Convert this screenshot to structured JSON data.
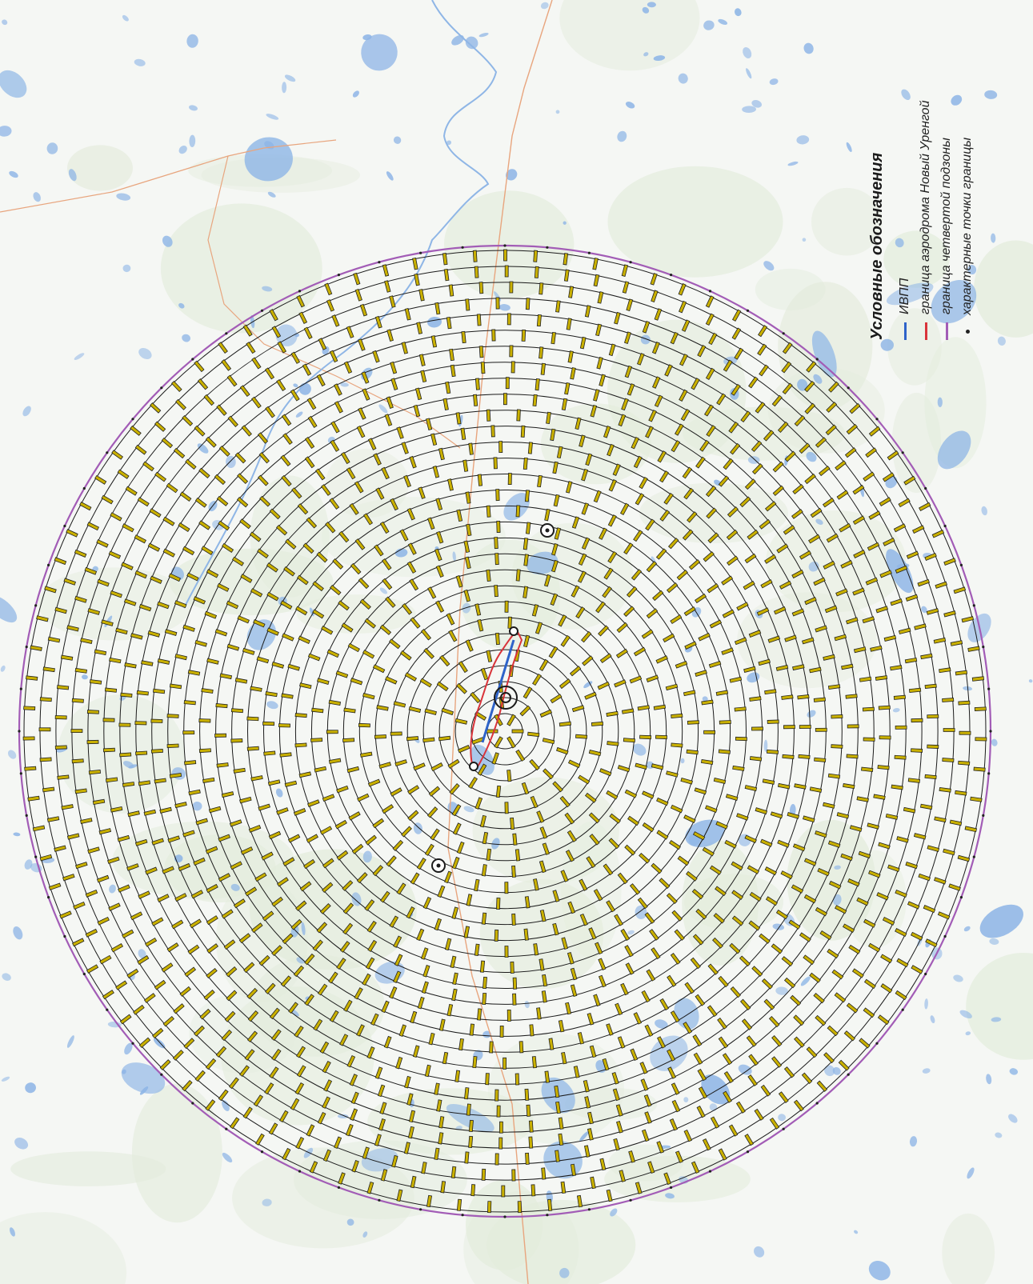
{
  "colors": {
    "background": "#f5f7f4",
    "land_green": "#e3ecdc",
    "water": "#8fb6e6",
    "runway": "#2e63c9",
    "aerodrome_boundary": "#d9333a",
    "subzone_boundary": "#a25cb6",
    "rings": "#1b1b1b",
    "road": "#e8a57e",
    "label_fill": "#c9b000"
  },
  "map": {
    "ring_count": 30,
    "subzone": "граница четвертой подзоны"
  },
  "legend": {
    "title": "Условные обозначения",
    "items": [
      {
        "label": "ИВПП",
        "color": "#2e63c9",
        "kind": "line"
      },
      {
        "label": "граница аэродрома Новый Уренгой",
        "color": "#d9333a",
        "kind": "line"
      },
      {
        "label": "граница четвертой подзоны",
        "color": "#a25cb6",
        "kind": "line"
      },
      {
        "label": "характерные точки границы",
        "color": "#222222",
        "kind": "dot"
      }
    ]
  }
}
